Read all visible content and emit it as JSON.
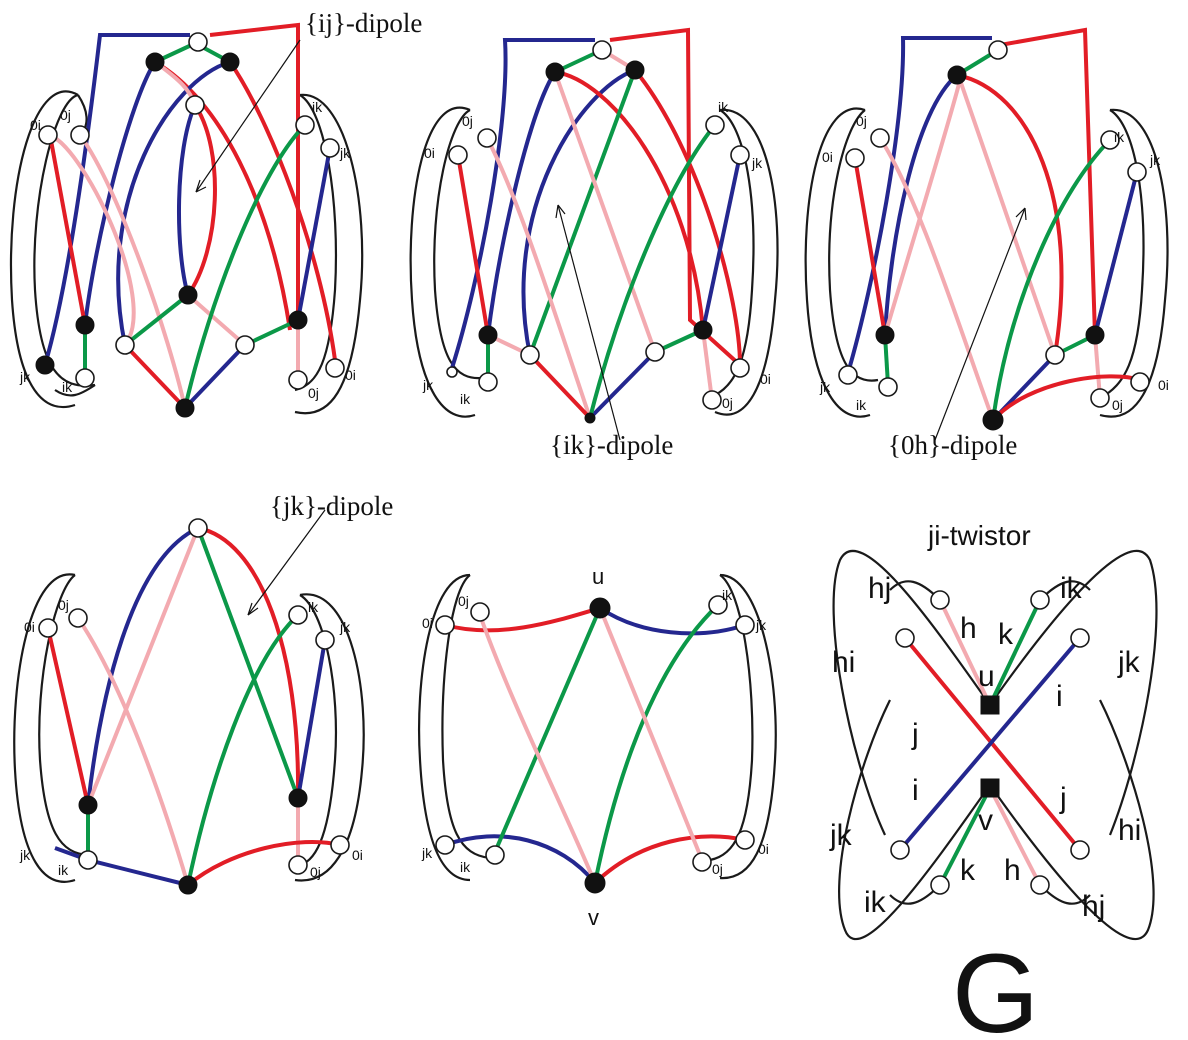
{
  "annotations": {
    "ij_dipole": "{ij}-dipole",
    "ik_dipole": "{ik}-dipole",
    "0h_dipole": "{0h}-dipole",
    "jk_dipole": "{jk}-dipole"
  },
  "small_labels": {
    "l0i": "0i",
    "l0j": "0j",
    "lik": "ik",
    "ljk": "jk"
  },
  "graph5": {
    "u": "u",
    "v": "v"
  },
  "twistor": {
    "title": "ji-twistor",
    "hj": "hj",
    "hi": "hi",
    "ik": "ik",
    "jk": "jk",
    "h": "h",
    "k": "k",
    "u": "u",
    "v": "v",
    "i": "i",
    "j": "j"
  },
  "caption": "G",
  "colors": {
    "blue": "#24278f",
    "red": "#e21d26",
    "green": "#0b9848",
    "pink": "#f3aab0",
    "black": "#1a1a1a"
  }
}
